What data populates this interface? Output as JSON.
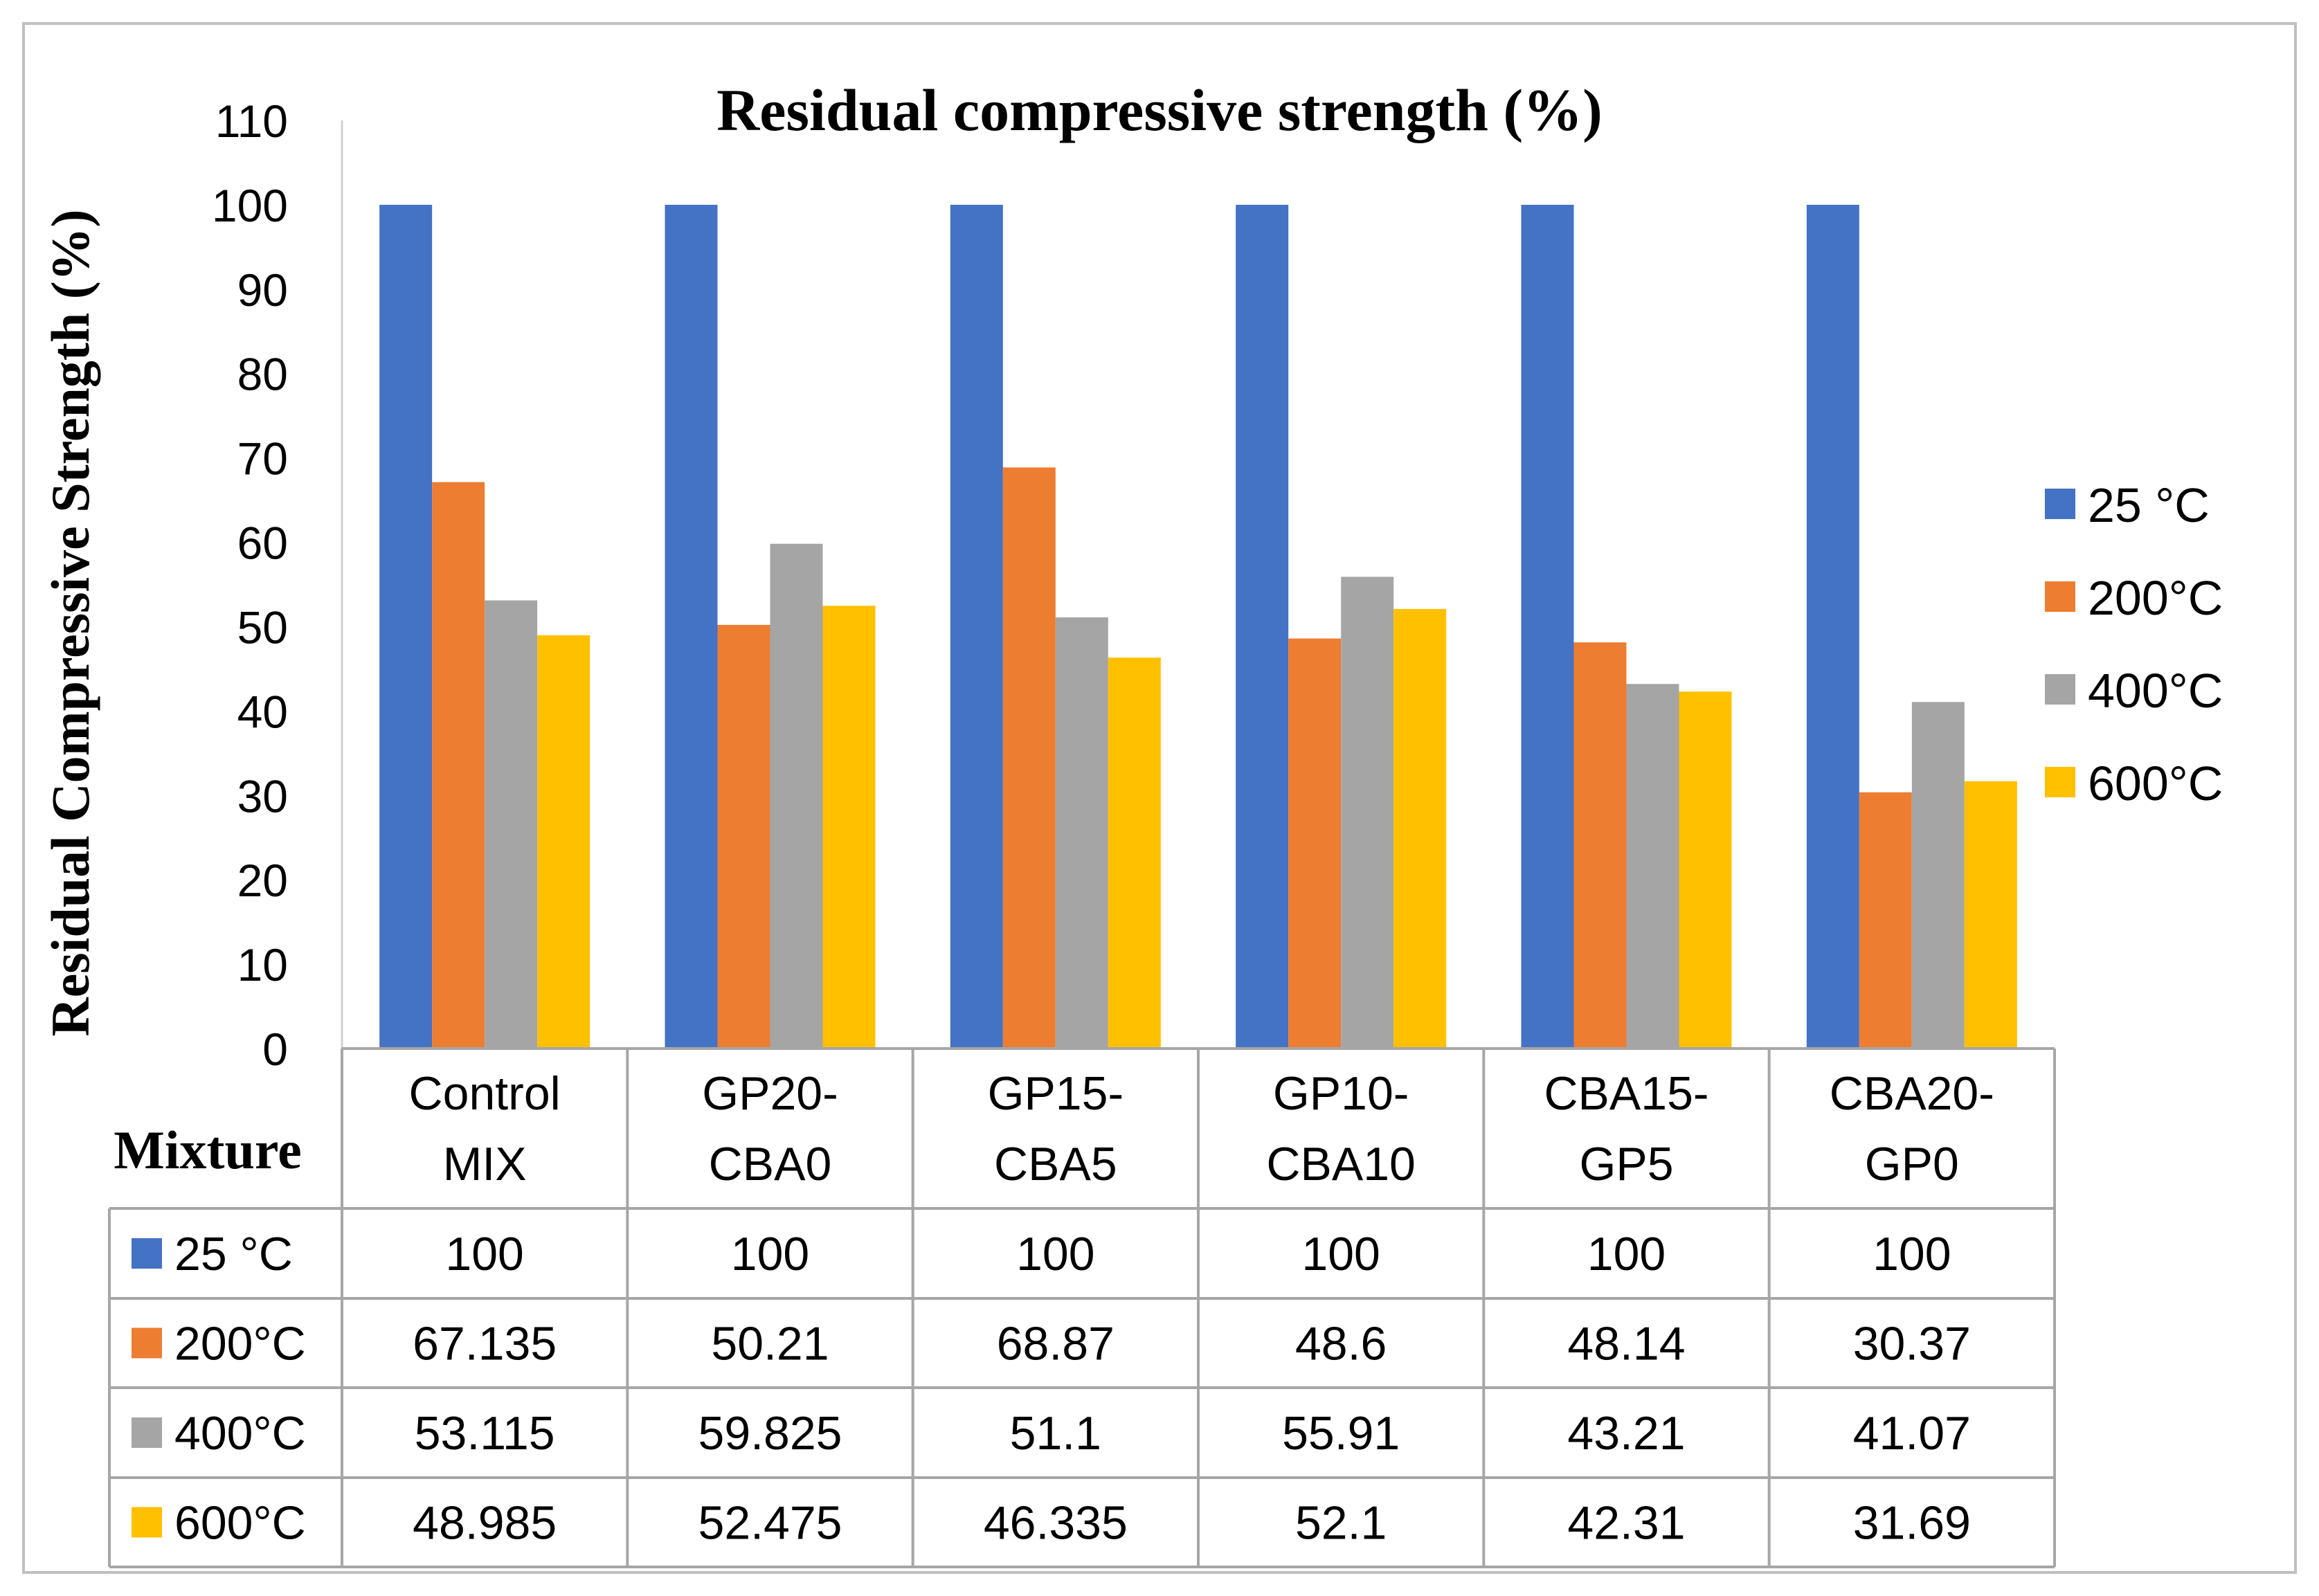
{
  "chart_data": {
    "type": "bar",
    "title": "Residual compressive strength (%)",
    "ylabel": "Residual Compressive Strength (%)",
    "xlabel": "Mixture",
    "ylim": [
      0,
      110
    ],
    "yticks": [
      0,
      10,
      20,
      30,
      40,
      50,
      60,
      70,
      80,
      90,
      100,
      110
    ],
    "grid": false,
    "legend_position": "right",
    "categories": [
      [
        "Control",
        "MIX"
      ],
      [
        "GP20-",
        "CBA0"
      ],
      [
        "GP15-",
        "CBA5"
      ],
      [
        "GP10-",
        "CBA10"
      ],
      [
        "CBA15-",
        "GP5"
      ],
      [
        "CBA20-",
        "GP0"
      ]
    ],
    "series": [
      {
        "name": "25 °C",
        "color": "#4472C4",
        "values": [
          100,
          100,
          100,
          100,
          100,
          100
        ],
        "labels": [
          "100",
          "100",
          "100",
          "100",
          "100",
          "100"
        ]
      },
      {
        "name": "200°C",
        "color": "#ED7D31",
        "values": [
          67.135,
          50.21,
          68.87,
          48.6,
          48.14,
          30.37
        ],
        "labels": [
          "67.135",
          "50.21",
          "68.87",
          "48.6",
          "48.14",
          "30.37"
        ]
      },
      {
        "name": "400°C",
        "color": "#A5A5A5",
        "values": [
          53.115,
          59.825,
          51.1,
          55.91,
          43.21,
          41.07
        ],
        "labels": [
          "53.115",
          "59.825",
          "51.1",
          "55.91",
          "43.21",
          "41.07"
        ]
      },
      {
        "name": "600°C",
        "color": "#FFC000",
        "values": [
          48.985,
          52.475,
          46.335,
          52.1,
          42.31,
          31.69
        ],
        "labels": [
          "48.985",
          "52.475",
          "46.335",
          "52.1",
          "42.31",
          "31.69"
        ]
      }
    ],
    "data_table": true
  }
}
